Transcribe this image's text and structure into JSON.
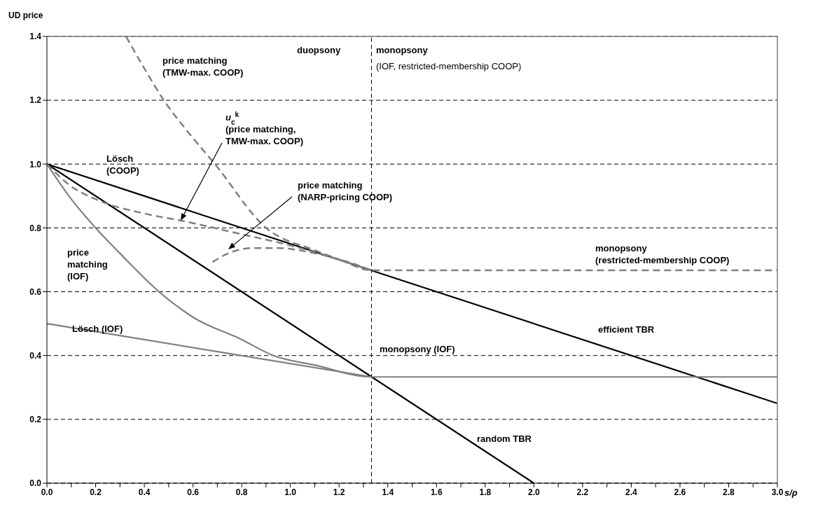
{
  "chart_data": {
    "type": "line",
    "xlabel": "s/ρ",
    "ylabel": "UD price",
    "xlim": [
      0,
      3
    ],
    "ylim": [
      0,
      1.4
    ],
    "xticks": [
      {
        "value": 0,
        "label": "0.0"
      },
      {
        "value": 0.1,
        "label": null
      },
      {
        "value": 0.2,
        "label": "0.2"
      },
      {
        "value": 0.3,
        "label": null
      },
      {
        "value": 0.4,
        "label": "0.4"
      },
      {
        "value": 0.5,
        "label": null
      },
      {
        "value": 0.6,
        "label": "0.6"
      },
      {
        "value": 0.7,
        "label": null
      },
      {
        "value": 0.8,
        "label": "0.8"
      },
      {
        "value": 0.9,
        "label": null
      },
      {
        "value": 1,
        "label": "1.0"
      },
      {
        "value": 1.1,
        "label": null
      },
      {
        "value": 1.2,
        "label": "1.2"
      },
      {
        "value": 1.3,
        "label": null
      },
      {
        "value": 1.4,
        "label": "1.4"
      },
      {
        "value": 1.5,
        "label": null
      },
      {
        "value": 1.6,
        "label": "1.6"
      },
      {
        "value": 1.7,
        "label": null
      },
      {
        "value": 1.8,
        "label": "1.8"
      },
      {
        "value": 1.9,
        "label": null
      },
      {
        "value": 2,
        "label": "2.0"
      },
      {
        "value": 2.1,
        "label": null
      },
      {
        "value": 2.2,
        "label": "2.2"
      },
      {
        "value": 2.3,
        "label": null
      },
      {
        "value": 2.4,
        "label": "2.4"
      },
      {
        "value": 2.5,
        "label": null
      },
      {
        "value": 2.6,
        "label": "2.6"
      },
      {
        "value": 2.7,
        "label": null
      },
      {
        "value": 2.8,
        "label": "2.8"
      },
      {
        "value": 2.9,
        "label": null
      },
      {
        "value": 3,
        "label": "3.0"
      }
    ],
    "yticks": [
      {
        "value": 0,
        "label": "0.0"
      },
      {
        "value": 0.2,
        "label": "0.2"
      },
      {
        "value": 0.4,
        "label": "0.4"
      },
      {
        "value": 0.6,
        "label": "0.6"
      },
      {
        "value": 0.8,
        "label": "0.8"
      },
      {
        "value": 1,
        "label": "1.0"
      },
      {
        "value": 1.2,
        "label": "1.2"
      },
      {
        "value": 1.4,
        "label": "1.4"
      }
    ],
    "grid": "y",
    "marker": "none",
    "series": [
      {
        "color": "#000000",
        "line_style": "solid",
        "x": [
          0,
          3
        ],
        "values": [
          1,
          0.25
        ]
      },
      {
        "color": "#000000",
        "line_style": "solid",
        "x": [
          0,
          2
        ],
        "values": [
          1,
          0
        ]
      },
      {
        "color": "#808080",
        "line_style": "solid",
        "x": [
          0,
          0.1,
          0.2,
          0.3,
          0.46,
          0.6,
          0.8,
          0.93,
          1.1,
          1.333,
          3
        ],
        "values": [
          1,
          0.89,
          0.8,
          0.72,
          0.6,
          0.52,
          0.45,
          0.4,
          0.37,
          0.333,
          0.333
        ]
      },
      {
        "color": "#808080",
        "line_style": "solid",
        "x": [
          0,
          1.333
        ],
        "values": [
          0.5,
          0.333
        ]
      },
      {
        "color": "#808080",
        "line_style": "dashed",
        "x": [
          0,
          0.1,
          0.2,
          0.4,
          0.55,
          0.8,
          1,
          1.2,
          1.333,
          3
        ],
        "values": [
          1,
          0.93,
          0.89,
          0.845,
          0.823,
          0.78,
          0.745,
          0.7,
          0.667,
          0.667
        ]
      },
      {
        "color": "#808080",
        "line_style": "dashed",
        "x": [
          0.325,
          0.4,
          0.48,
          0.58,
          0.69,
          0.9,
          1.1,
          1.333
        ],
        "values": [
          1.4,
          1.3,
          1.2,
          1.1,
          1,
          0.8,
          0.73,
          0.667
        ]
      },
      {
        "color": "#808080",
        "line_style": "dashed",
        "x": [
          0.68,
          0.75,
          0.85,
          0.95,
          1.05,
          1.15,
          1.25,
          1.333
        ],
        "values": [
          0.693,
          0.722,
          0.737,
          0.737,
          0.728,
          0.712,
          0.69,
          0.667
        ]
      }
    ],
    "ref_lines": [
      {
        "axis": "x",
        "value": 1.333,
        "color": "#000000",
        "line_style": "dashed"
      }
    ],
    "annotations": [
      "price matching\n(TMW-max. COOP)",
      "u$_{c}$$^{k}$\n(price matching,\nTMW-max. COOP)",
      "Lösch\n(COOP)",
      "price matching\n(NARP-pricing COOP)",
      "price\nmatching\n(IOF)",
      "Lösch (IOF)",
      "monopsony (IOF)",
      "duopsony",
      "monopsony",
      "(IOF, restricted-membership COOP)",
      "monopsony\n(restricted-membership COOP)",
      "efficient TBR",
      "random TBR"
    ]
  }
}
